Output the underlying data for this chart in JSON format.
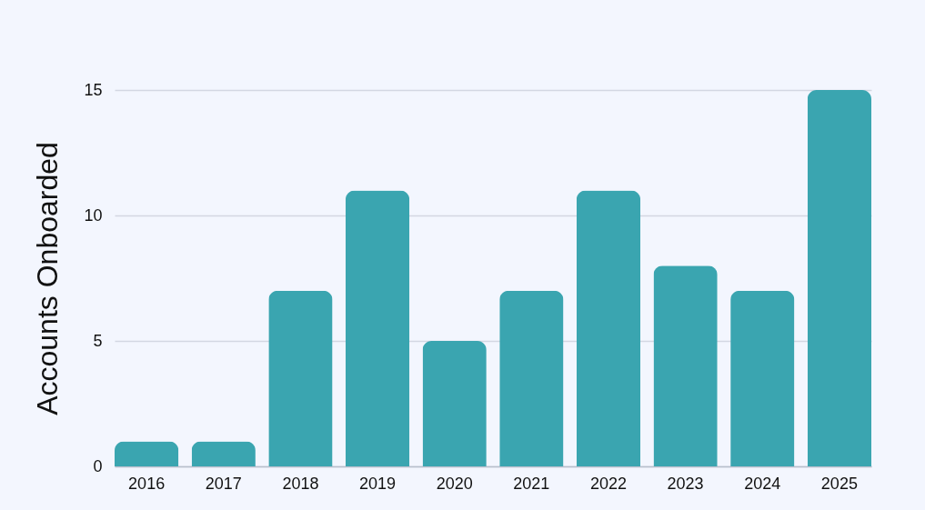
{
  "chart_data": {
    "type": "bar",
    "categories": [
      "2016",
      "2017",
      "2018",
      "2019",
      "2020",
      "2021",
      "2022",
      "2023",
      "2024",
      "2025"
    ],
    "values": [
      1,
      1,
      7,
      11,
      5,
      7,
      11,
      8,
      7,
      15
    ],
    "color": "#3aa5b0",
    "ylabel": "Accounts Onboarded",
    "ylim": [
      0,
      15
    ],
    "yticks": [
      0,
      5,
      10,
      15
    ],
    "grid": "y"
  }
}
